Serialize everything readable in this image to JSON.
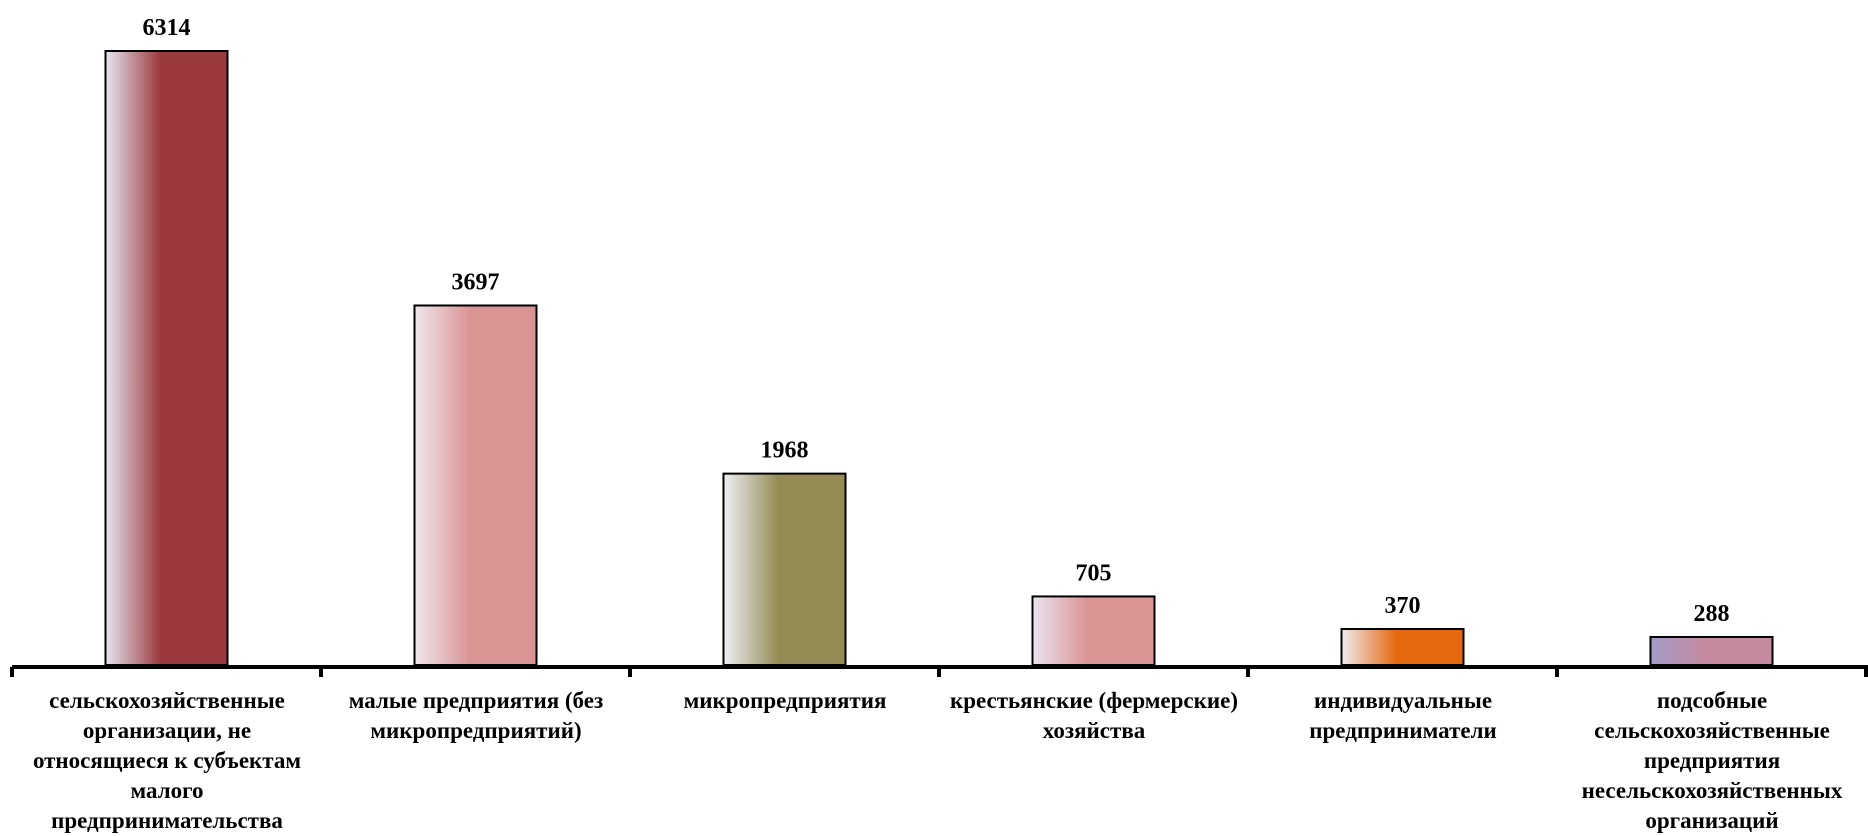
{
  "chart_data": {
    "type": "bar",
    "categories": [
      "сельскохозяйственные организации, не относящиеся к субъектам малого предпринимательства",
      "малые  предприятия (без микропредприятий)",
      "микропредприятия",
      "крестьянские (фермерские) хозяйства",
      "индивидуальные предприниматели",
      "подсобные сельскохозяйственные предприятия несельскохозяйственных организаций"
    ],
    "values": [
      6314,
      3697,
      1968,
      705,
      370,
      288
    ],
    "data_labels": [
      "6314",
      "3697",
      "1968",
      "705",
      "370",
      "288"
    ],
    "bar_colors": [
      "#9b3a3e",
      "#da9494",
      "#958b55",
      "#da9494",
      "#e5680f",
      "#c58a9f"
    ],
    "bar_highlight_colors": [
      "#e6e6f2",
      "#f0e8ee",
      "#eef0f5",
      "#eae4f0",
      "#f1ecf2",
      "#a39cc8"
    ],
    "ylim": [
      0,
      6314
    ],
    "grid": false,
    "legend": "none"
  }
}
